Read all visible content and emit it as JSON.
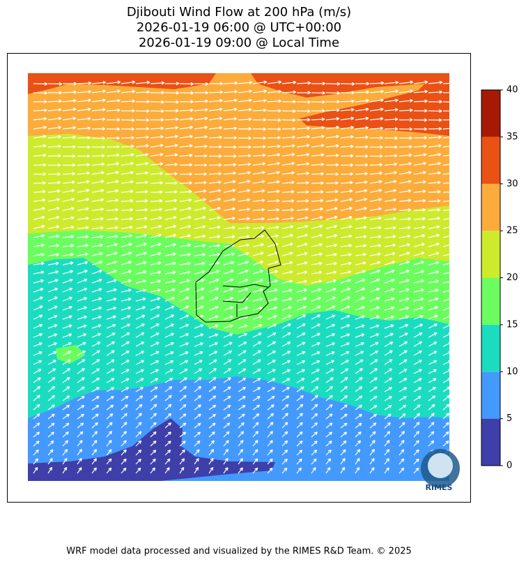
{
  "title": {
    "lines": [
      "Djibouti Wind Flow at 200 hPa (m/s)",
      "2026-01-19 06:00 @ UTC+00:00",
      "2026-01-19 09:00 @ Local Time"
    ]
  },
  "colorbar": {
    "ticks": [
      0,
      5,
      10,
      15,
      20,
      25,
      30,
      35,
      40
    ],
    "colors": [
      "#3e3fa8",
      "#4499fd",
      "#1cdcc0",
      "#6bfd5f",
      "#ceea2d",
      "#fcac3b",
      "#ea5114",
      "#a61904"
    ]
  },
  "logo": "RIMES",
  "footer": "WRF model data processed and visualized by the RIMES R&D Team. © 2025"
}
